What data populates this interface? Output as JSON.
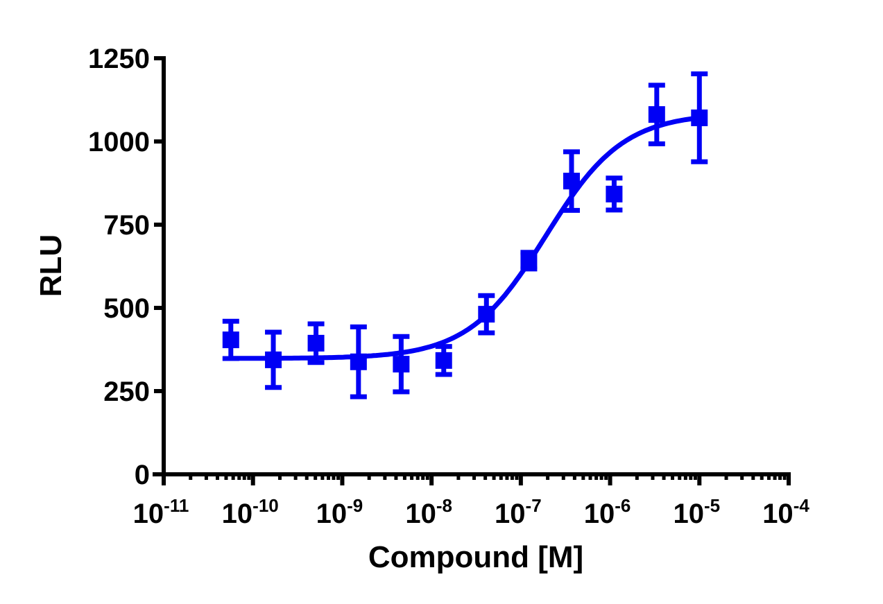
{
  "chart_data": {
    "type": "scatter",
    "title": "",
    "xlabel": "Compound [M]",
    "ylabel": "RLU",
    "xscale": "log",
    "xlim": [
      1e-11,
      0.0001
    ],
    "ylim": [
      0,
      1250
    ],
    "x_ticks": [
      {
        "base": "10",
        "exp": "-11",
        "value": 1e-11
      },
      {
        "base": "10",
        "exp": "-10",
        "value": 1e-10
      },
      {
        "base": "10",
        "exp": "-9",
        "value": 1e-09
      },
      {
        "base": "10",
        "exp": "-8",
        "value": 1e-08
      },
      {
        "base": "10",
        "exp": "-7",
        "value": 1e-07
      },
      {
        "base": "10",
        "exp": "-6",
        "value": 1e-06
      },
      {
        "base": "10",
        "exp": "-5",
        "value": 1e-05
      },
      {
        "base": "10",
        "exp": "-4",
        "value": 0.0001
      }
    ],
    "y_ticks": [
      "0",
      "250",
      "500",
      "750",
      "1000",
      "1250"
    ],
    "grid": false,
    "legend": null,
    "series": [
      {
        "name": "Compound",
        "color": "#0000F5",
        "marker": "square",
        "x": [
          5.65e-11,
          1.69e-10,
          5.08e-10,
          1.52e-09,
          4.57e-09,
          1.37e-08,
          4.12e-08,
          1.23e-07,
          3.7e-07,
          1.11e-06,
          3.33e-06,
          1e-05
        ],
        "y": [
          404,
          344,
          394,
          338,
          331,
          342,
          481,
          642,
          881,
          842,
          1081,
          1071
        ],
        "yerr": [
          56,
          83,
          58,
          105,
          83,
          42,
          56,
          25,
          88,
          48,
          88,
          132
        ]
      }
    ],
    "fit": {
      "type": "sigmoidal dose-response (4PL)",
      "bottom": 348,
      "top": 1085,
      "logEC50": -6.72,
      "hill_slope": 1.0,
      "x_range": [
        5.65e-11,
        1e-05
      ],
      "color": "#0000F5"
    }
  }
}
